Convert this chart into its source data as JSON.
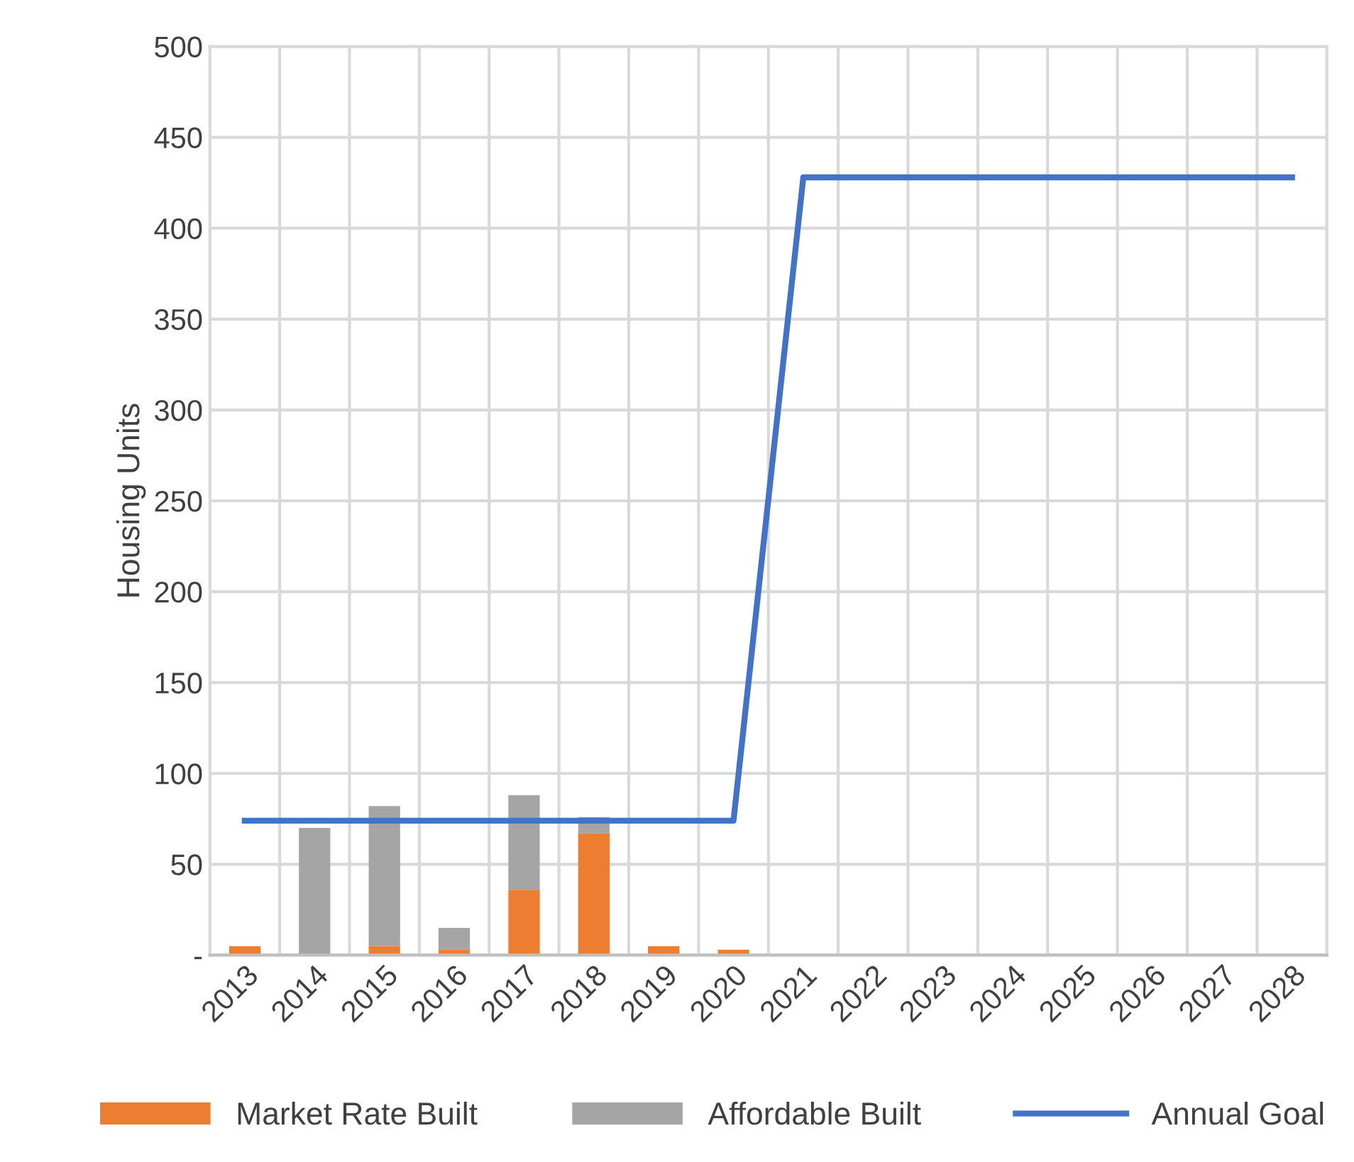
{
  "chart_data": {
    "type": "bar",
    "stacked": true,
    "ylabel": "Housing Units",
    "categories": [
      "2013",
      "2014",
      "2015",
      "2016",
      "2017",
      "2018",
      "2019",
      "2020",
      "2021",
      "2022",
      "2023",
      "2024",
      "2025",
      "2026",
      "2027",
      "2028"
    ],
    "series": [
      {
        "name": "Market Rate Built",
        "color": "#ed7d31",
        "values": [
          5,
          0,
          5,
          3,
          36,
          67,
          5,
          3,
          null,
          null,
          null,
          null,
          null,
          null,
          null,
          null
        ]
      },
      {
        "name": "Affordable Built",
        "color": "#a5a5a5",
        "values": [
          0,
          70,
          77,
          12,
          52,
          9,
          0,
          0,
          null,
          null,
          null,
          null,
          null,
          null,
          null,
          null
        ]
      },
      {
        "name": "Annual Goal",
        "type": "line",
        "color": "#4472c4",
        "values": [
          74,
          74,
          74,
          74,
          74,
          74,
          74,
          74,
          428,
          428,
          428,
          428,
          428,
          428,
          428,
          428
        ]
      }
    ],
    "ylim": [
      0,
      500
    ],
    "yticks": [
      {
        "value": 0,
        "label": "-"
      },
      50,
      100,
      150,
      200,
      250,
      300,
      350,
      400,
      450,
      500
    ],
    "grid": true,
    "legend": "bottom"
  }
}
